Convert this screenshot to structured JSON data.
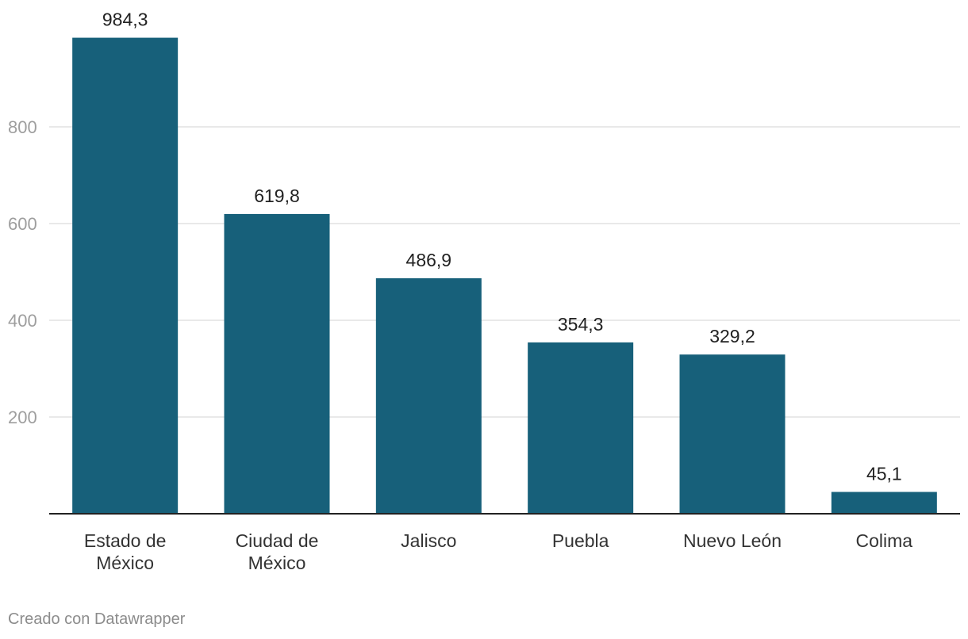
{
  "chart_data": {
    "type": "bar",
    "categories": [
      "Estado de México",
      "Ciudad de México",
      "Jalisco",
      "Puebla",
      "Nuevo León",
      "Colima"
    ],
    "category_lines": [
      [
        "Estado de",
        "México"
      ],
      [
        "Ciudad de",
        "México"
      ],
      [
        "Jalisco"
      ],
      [
        "Puebla"
      ],
      [
        "Nuevo León"
      ],
      [
        "Colima"
      ]
    ],
    "values": [
      984.3,
      619.8,
      486.9,
      354.3,
      329.2,
      45.1
    ],
    "value_labels": [
      "984,3",
      "619,8",
      "486,9",
      "354,3",
      "329,2",
      "45,1"
    ],
    "yticks": [
      200,
      400,
      600,
      800
    ],
    "ylim": [
      0,
      1000
    ],
    "grid": true,
    "bar_color": "#17607a",
    "title": "",
    "xlabel": "",
    "ylabel": ""
  },
  "footer": {
    "credit": "Creado con Datawrapper"
  }
}
